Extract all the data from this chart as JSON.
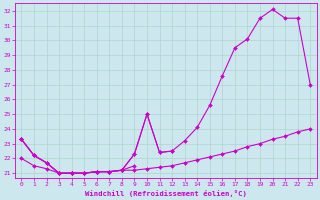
{
  "xlabel": "Windchill (Refroidissement éolien,°C)",
  "background_color": "#cce8ee",
  "grid_color": "#b0d4cc",
  "line_color": "#cc00cc",
  "line_upper": {
    "x": [
      0,
      1,
      2,
      3,
      4,
      5,
      6,
      7,
      8,
      9,
      10,
      11,
      12,
      13,
      14,
      15,
      16,
      17,
      18,
      19,
      20,
      21,
      22,
      23
    ],
    "y": [
      23.3,
      22.2,
      21.7,
      21.0,
      21.0,
      21.0,
      21.1,
      21.1,
      21.2,
      22.3,
      25.0,
      22.4,
      22.5,
      23.2,
      24.1,
      25.6,
      27.6,
      29.5,
      30.1,
      31.5,
      32.1,
      31.5,
      31.5,
      27.0
    ]
  },
  "line_mid": {
    "x": [
      0,
      1,
      2,
      3,
      4,
      5,
      6,
      7,
      8,
      9,
      10,
      11,
      12
    ],
    "y": [
      23.3,
      22.2,
      21.7,
      21.0,
      21.0,
      21.0,
      21.1,
      21.1,
      21.2,
      22.3,
      25.0,
      22.4,
      22.5
    ]
  },
  "line_short": {
    "x": [
      0,
      1,
      2,
      3,
      4,
      5,
      6,
      7,
      8,
      9
    ],
    "y": [
      23.3,
      22.2,
      21.7,
      21.0,
      21.0,
      21.0,
      21.1,
      21.1,
      21.2,
      21.5
    ]
  },
  "line_lower": {
    "x": [
      0,
      1,
      2,
      3,
      4,
      5,
      6,
      7,
      8,
      9,
      10,
      11,
      12,
      13,
      14,
      15,
      16,
      17,
      18,
      19,
      20,
      21,
      22,
      23
    ],
    "y": [
      22.0,
      21.5,
      21.3,
      21.0,
      21.0,
      21.0,
      21.1,
      21.1,
      21.2,
      21.2,
      21.3,
      21.4,
      21.5,
      21.7,
      21.9,
      22.1,
      22.3,
      22.5,
      22.8,
      23.0,
      23.3,
      23.5,
      23.8,
      24.0
    ]
  },
  "ylim": [
    20.7,
    32.5
  ],
  "xlim": [
    -0.5,
    23.5
  ],
  "yticks": [
    21,
    22,
    23,
    24,
    25,
    26,
    27,
    28,
    29,
    30,
    31,
    32
  ],
  "xticks": [
    0,
    1,
    2,
    3,
    4,
    5,
    6,
    7,
    8,
    9,
    10,
    11,
    12,
    13,
    14,
    15,
    16,
    17,
    18,
    19,
    20,
    21,
    22,
    23
  ]
}
